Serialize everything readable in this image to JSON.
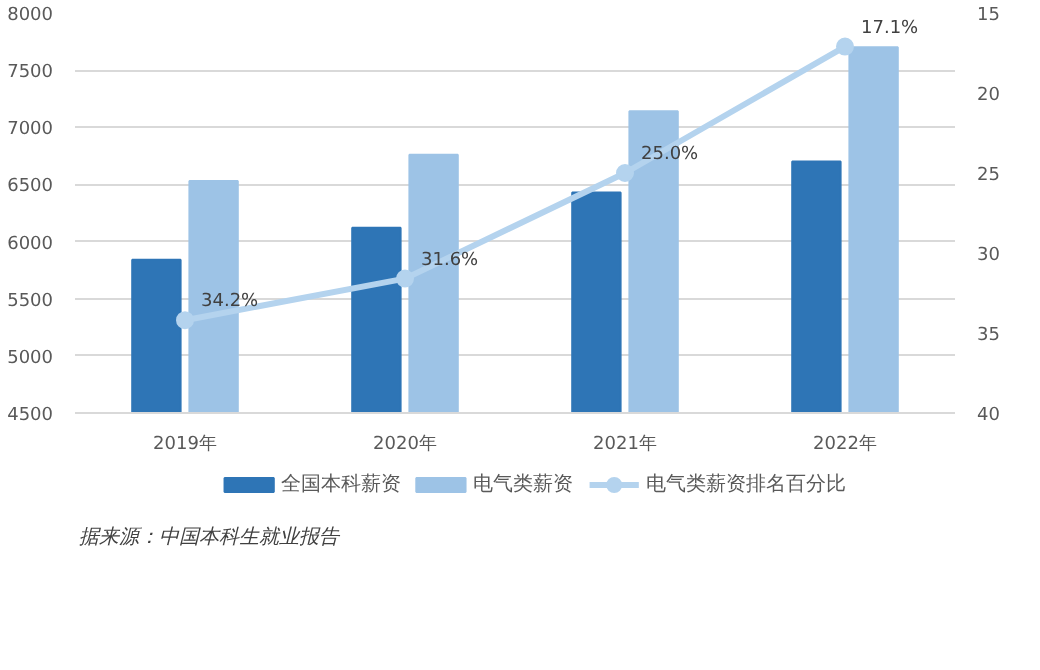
{
  "chart_data": {
    "type": "bar",
    "categories": [
      "2019年",
      "2020年",
      "2021年",
      "2022年"
    ],
    "series": [
      {
        "name": "全国本科薪资",
        "color": "#2e75b6",
        "values": [
          5840,
          6120,
          6430,
          6700
        ]
      },
      {
        "name": "电气类薪资",
        "color": "#9dc3e6",
        "values": [
          6530,
          6760,
          7140,
          7700
        ]
      },
      {
        "name": "电气类薪资排名百分比",
        "type": "line",
        "axis": "y2",
        "color": "#b4d3ee",
        "values": [
          34.2,
          31.6,
          25.0,
          17.1
        ],
        "value_labels": [
          "34.2%",
          "31.6%",
          "25.0%",
          "17.1%"
        ]
      }
    ],
    "ylim": [
      4500,
      8000
    ],
    "yticks": [
      4500,
      5000,
      5500,
      6000,
      6500,
      7000,
      7500,
      8000
    ],
    "y2lim": [
      40,
      15
    ],
    "y2ticks": [
      15,
      20,
      25,
      30,
      35,
      40
    ],
    "grid": "y",
    "legend": "bottom",
    "marker": "circle",
    "annotations": [
      "据来源：中国本科生就业报告"
    ]
  }
}
